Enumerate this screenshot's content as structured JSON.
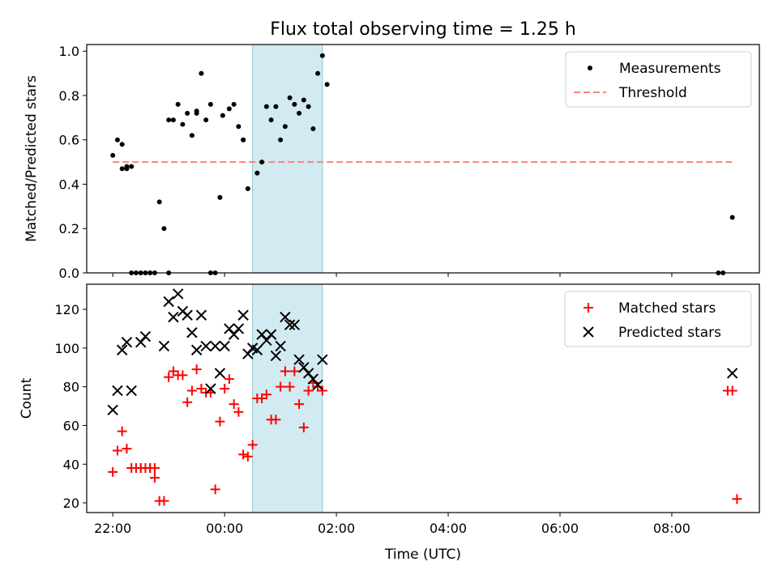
{
  "figure": {
    "title": "Flux total observing time = 1.25 h",
    "xlabel": "Time (UTC)"
  },
  "colors": {
    "highlight": "#add8e6",
    "threshold": "#ff8080",
    "matched": "#ff0000",
    "measurement": "#000000"
  },
  "chart_data": [
    {
      "type": "scatter",
      "panel": "top",
      "ylabel": "Matched/Predicted stars",
      "xlim": [
        "21:32",
        "33:34"
      ],
      "ylim": [
        0,
        1.03
      ],
      "x_ticks": [
        "22:00",
        "00:00",
        "02:00",
        "04:00",
        "06:00",
        "08:00"
      ],
      "x_ticks_hours": [
        22,
        24,
        26,
        28,
        30,
        32
      ],
      "y_ticks": [
        "0.0",
        "0.2",
        "0.4",
        "0.6",
        "0.8",
        "1.0"
      ],
      "highlight_span": [
        "00:30",
        "01:45"
      ],
      "legend_position": "upper right",
      "legend": [
        "Measurements",
        "Threshold"
      ],
      "threshold": {
        "name": "Threshold",
        "y": 0.5,
        "x_range": [
          "22:00",
          "09:05"
        ]
      },
      "series": [
        {
          "name": "Measurements",
          "x": [
            "22:00",
            "22:05",
            "22:10",
            "22:15",
            "22:20",
            "22:30",
            "22:35",
            "22:40",
            "22:45",
            "22:50",
            "22:55",
            "23:00",
            "23:05",
            "23:15",
            "23:20",
            "23:25",
            "23:30",
            "23:35",
            "23:40",
            "23:45",
            "23:55",
            "23:58",
            "00:05",
            "00:10",
            "00:15",
            "00:20",
            "00:25",
            "00:35",
            "00:40",
            "00:45",
            "00:50",
            "00:55",
            "01:00",
            "01:05",
            "01:10",
            "01:15",
            "01:20",
            "01:25",
            "01:30",
            "01:35",
            "01:40",
            "01:45",
            "01:50",
            "22:10",
            "22:15",
            "22:20",
            "22:25",
            "23:00",
            "23:10",
            "23:30",
            "23:45",
            "23:50",
            "00:20",
            "08:50",
            "08:55",
            "09:05"
          ],
          "y": [
            0.53,
            0.6,
            0.58,
            0.47,
            0.48,
            0.0,
            0.0,
            0.0,
            0.0,
            0.32,
            0.2,
            0.0,
            0.69,
            0.67,
            0.72,
            0.62,
            0.73,
            0.9,
            0.69,
            0.76,
            0.34,
            0.71,
            0.74,
            0.76,
            0.66,
            0.6,
            0.38,
            0.45,
            0.5,
            0.75,
            0.69,
            0.75,
            0.6,
            0.66,
            0.79,
            0.76,
            0.72,
            0.78,
            0.75,
            0.65,
            0.9,
            0.98,
            0.85,
            0.47,
            0.48,
            0.0,
            0.0,
            0.69,
            0.76,
            0.72,
            0.0,
            0.0,
            0.6,
            0.0,
            0.0,
            0.25
          ]
        }
      ]
    },
    {
      "type": "scatter",
      "panel": "bottom",
      "ylabel": "Count",
      "xlim": [
        "21:32",
        "33:34"
      ],
      "ylim": [
        15,
        133
      ],
      "x_ticks": [
        "22:00",
        "00:00",
        "02:00",
        "04:00",
        "06:00",
        "08:00"
      ],
      "x_ticks_hours": [
        22,
        24,
        26,
        28,
        30,
        32
      ],
      "y_ticks": [
        "20",
        "40",
        "60",
        "80",
        "100",
        "120"
      ],
      "highlight_span": [
        "00:30",
        "01:45"
      ],
      "legend_position": "upper right",
      "legend": [
        "Matched stars",
        "Predicted stars"
      ],
      "series": [
        {
          "name": "Matched stars",
          "x": [
            "22:00",
            "22:05",
            "22:10",
            "22:15",
            "22:20",
            "22:25",
            "22:30",
            "22:35",
            "22:40",
            "22:45",
            "22:50",
            "22:55",
            "23:00",
            "23:05",
            "23:10",
            "23:15",
            "23:20",
            "23:25",
            "23:30",
            "23:35",
            "23:40",
            "23:45",
            "23:50",
            "23:55",
            "24:00",
            "24:05",
            "24:10",
            "24:15",
            "24:20",
            "24:25",
            "24:30",
            "24:35",
            "24:40",
            "24:45",
            "24:50",
            "24:55",
            "25:00",
            "25:05",
            "25:10",
            "25:15",
            "25:20",
            "25:25",
            "25:30",
            "25:35",
            "25:40",
            "25:45",
            "22:30",
            "22:40",
            "22:45",
            "33:00",
            "33:05",
            "33:10"
          ],
          "y": [
            36,
            47,
            57,
            48,
            38,
            38,
            38,
            38,
            38,
            33,
            21,
            21,
            85,
            88,
            86,
            86,
            72,
            78,
            89,
            79,
            77,
            77,
            27,
            62,
            79,
            84,
            71,
            67,
            45,
            44,
            50,
            74,
            74,
            76,
            63,
            63,
            80,
            88,
            80,
            88,
            71,
            59,
            78,
            82,
            80,
            78,
            38,
            38,
            38,
            78,
            78,
            22
          ]
        },
        {
          "name": "Predicted stars",
          "x": [
            "22:00",
            "22:05",
            "22:10",
            "22:15",
            "22:20",
            "22:30",
            "22:35",
            "23:00",
            "23:05",
            "23:10",
            "23:15",
            "23:20",
            "23:25",
            "23:30",
            "23:35",
            "23:40",
            "23:45",
            "23:55",
            "24:00",
            "24:05",
            "24:10",
            "24:15",
            "24:20",
            "24:25",
            "24:30",
            "24:35",
            "24:40",
            "24:45",
            "24:50",
            "24:55",
            "25:00",
            "25:05",
            "25:10",
            "25:15",
            "25:20",
            "25:25",
            "25:30",
            "25:35",
            "25:40",
            "25:45",
            "22:55",
            "23:50",
            "33:05"
          ],
          "y": [
            68,
            78,
            99,
            103,
            78,
            103,
            106,
            124,
            116,
            128,
            119,
            117,
            108,
            99,
            117,
            101,
            79,
            87,
            101,
            110,
            107,
            110,
            117,
            97,
            100,
            99,
            107,
            104,
            107,
            96,
            101,
            116,
            112,
            112,
            94,
            90,
            87,
            84,
            81,
            94,
            101,
            101,
            87
          ]
        }
      ]
    }
  ]
}
